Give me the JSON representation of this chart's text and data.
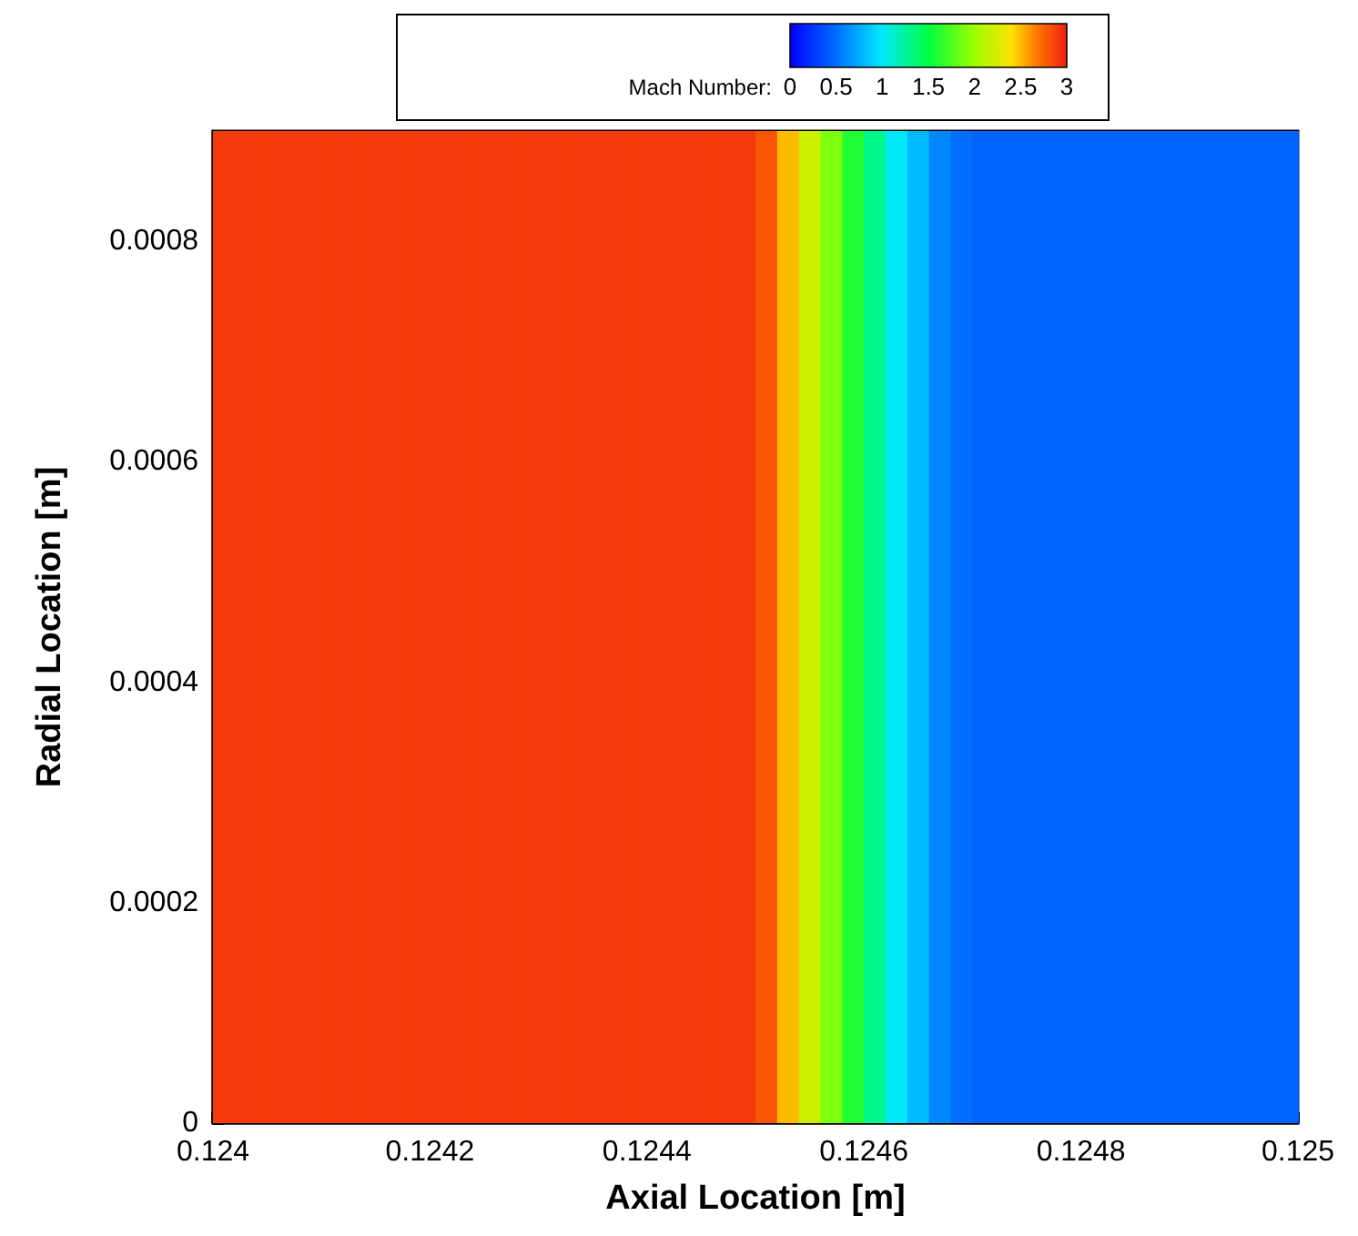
{
  "chart_data": {
    "type": "heatmap",
    "xlabel": "Axial Location [m]",
    "ylabel": "Radial Location [m]",
    "clabel": "Mach Number:",
    "x": [
      0.12401,
      0.12403,
      0.12405,
      0.12407,
      0.12409,
      0.12411,
      0.12413,
      0.12415,
      0.12417,
      0.12419,
      0.12421,
      0.12423,
      0.12425,
      0.12427,
      0.12429,
      0.12431,
      0.12433,
      0.12435,
      0.12437,
      0.12439,
      0.12441,
      0.12443,
      0.12445,
      0.12447,
      0.12449,
      0.12451,
      0.12453,
      0.12455,
      0.12457,
      0.12459,
      0.12461,
      0.12463,
      0.12465,
      0.12467,
      0.12469,
      0.12471,
      0.12473,
      0.12475,
      0.12477,
      0.12479,
      0.12481,
      0.12483,
      0.12485,
      0.12487,
      0.12489,
      0.12491,
      0.12493,
      0.12495,
      0.12497,
      0.12499
    ],
    "cells": [
      [
        2.9,
        2.9,
        2.9,
        2.9,
        2.9,
        2.9,
        2.9,
        2.9,
        2.9,
        2.9,
        2.9,
        2.9,
        2.9,
        2.9,
        2.9,
        2.9,
        2.9,
        2.9,
        2.9,
        2.9,
        2.9,
        2.9,
        2.9,
        2.9,
        2.9,
        2.8,
        2.5,
        2.2,
        1.9,
        1.6,
        1.3,
        1.0,
        0.8,
        0.6,
        0.5,
        0.45,
        0.45,
        0.45,
        0.45,
        0.45,
        0.45,
        0.45,
        0.45,
        0.45,
        0.45,
        0.45,
        0.45,
        0.45,
        0.45,
        0.45
      ]
    ],
    "xlim": [
      0.124,
      0.125
    ],
    "xticks": [
      0.124,
      0.1242,
      0.1244,
      0.1246,
      0.1248,
      0.125
    ],
    "ylim": [
      0,
      0.0009
    ],
    "yticks": [
      0,
      0.0002,
      0.0004,
      0.0006,
      0.0008
    ],
    "clim": [
      0,
      3
    ],
    "cticks": [
      0,
      0.5,
      1,
      1.5,
      2,
      2.5,
      3
    ]
  }
}
